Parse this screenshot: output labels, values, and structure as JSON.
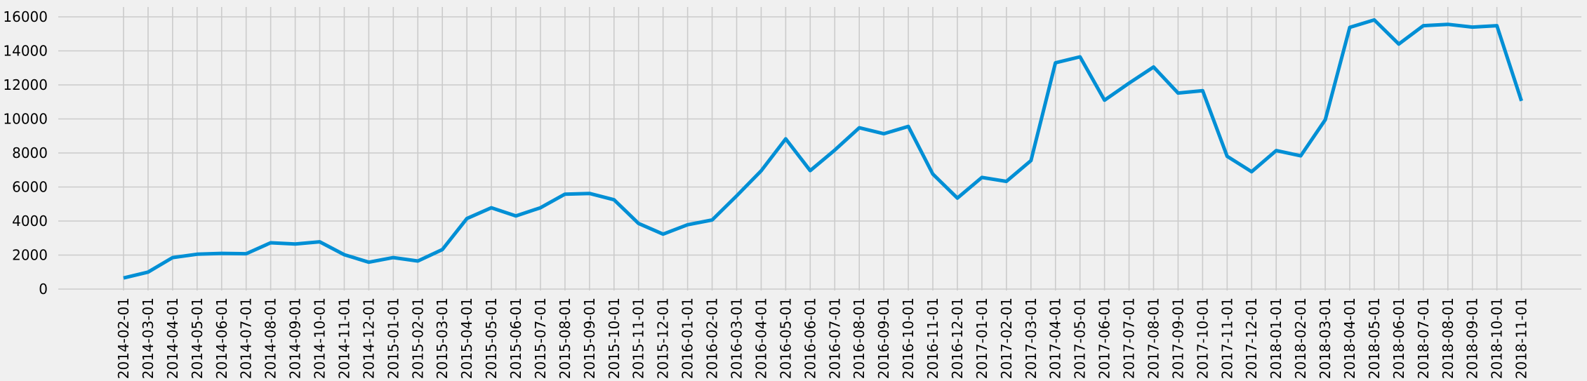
{
  "chart_data": {
    "type": "line",
    "title": "",
    "xlabel": "",
    "ylabel": "",
    "ylim": [
      0,
      16500
    ],
    "yticks": [
      0,
      2000,
      4000,
      6000,
      8000,
      10000,
      12000,
      14000,
      16000
    ],
    "ytick_labels": [
      "0",
      "2000",
      "4000",
      "6000",
      "8000",
      "10000",
      "12000",
      "14000",
      "16000"
    ],
    "grid": true,
    "line_color": "#008fd5",
    "categories": [
      "2014-02-01",
      "2014-03-01",
      "2014-04-01",
      "2014-05-01",
      "2014-06-01",
      "2014-07-01",
      "2014-08-01",
      "2014-09-01",
      "2014-10-01",
      "2014-11-01",
      "2014-12-01",
      "2015-01-01",
      "2015-02-01",
      "2015-03-01",
      "2015-04-01",
      "2015-05-01",
      "2015-06-01",
      "2015-07-01",
      "2015-08-01",
      "2015-09-01",
      "2015-10-01",
      "2015-11-01",
      "2015-12-01",
      "2016-01-01",
      "2016-02-01",
      "2016-03-01",
      "2016-04-01",
      "2016-05-01",
      "2016-06-01",
      "2016-07-01",
      "2016-08-01",
      "2016-09-01",
      "2016-10-01",
      "2016-11-01",
      "2016-12-01",
      "2017-01-01",
      "2017-02-01",
      "2017-03-01",
      "2017-04-01",
      "2017-05-01",
      "2017-06-01",
      "2017-07-01",
      "2017-08-01",
      "2017-09-01",
      "2017-10-01",
      "2017-11-01",
      "2017-12-01",
      "2018-01-01",
      "2018-02-01",
      "2018-03-01",
      "2018-04-01",
      "2018-05-01",
      "2018-06-01",
      "2018-07-01",
      "2018-08-01",
      "2018-09-01",
      "2018-10-01",
      "2018-11-01"
    ],
    "values": [
      650,
      1000,
      1850,
      2050,
      2100,
      2080,
      2720,
      2650,
      2780,
      2020,
      1580,
      1850,
      1650,
      2320,
      4150,
      4780,
      4300,
      4780,
      5580,
      5620,
      5250,
      3860,
      3230,
      3780,
      4060,
      5480,
      6950,
      8830,
      6960,
      8170,
      9480,
      9130,
      9560,
      6760,
      5350,
      6560,
      6330,
      7550,
      13300,
      13650,
      11100,
      12100,
      13050,
      11520,
      11660,
      7800,
      6900,
      8140,
      7830,
      9950,
      15380,
      15820,
      14400,
      15480,
      15560,
      15400,
      15480,
      11060
    ]
  }
}
